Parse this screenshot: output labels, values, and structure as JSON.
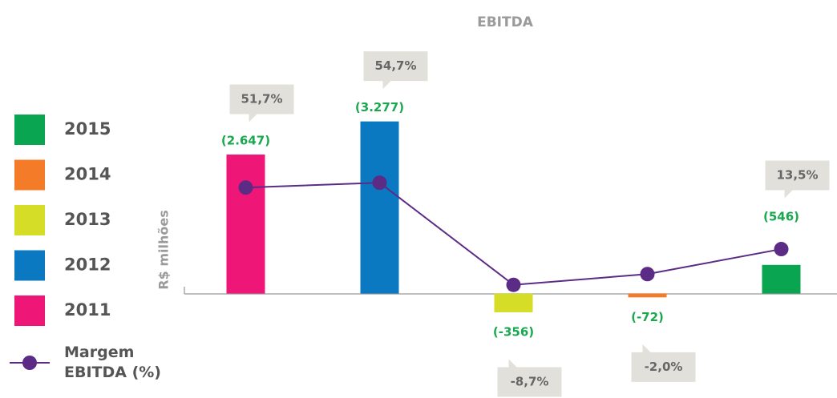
{
  "chart_data": {
    "type": "bar",
    "title": "EBITDA",
    "y_label": "R$ milhões",
    "categories": [
      "2011",
      "2012",
      "2013",
      "2014",
      "2015"
    ],
    "values": [
      2647,
      3277,
      -356,
      -72,
      546
    ],
    "value_labels": [
      "(2.647)",
      "(3.277)",
      "(-356)",
      "(-72)",
      "(546)"
    ],
    "colors": [
      "#ee1777",
      "#0b79c1",
      "#d6dd27",
      "#f47b27",
      "#0aa550"
    ],
    "ylim": [
      -1500,
      3500
    ],
    "y2lim": [
      -63,
      100
    ],
    "legend": "left",
    "line_series": {
      "name": "Margem EBITDA (%)",
      "color": "#5b2b86",
      "axis": "y2",
      "values": [
        51.7,
        54.7,
        -8.7,
        -2.0,
        13.5
      ],
      "value_labels": [
        "51,7%",
        "54,7%",
        "-8,7%",
        "-2,0%",
        "13,5%"
      ]
    }
  }
}
